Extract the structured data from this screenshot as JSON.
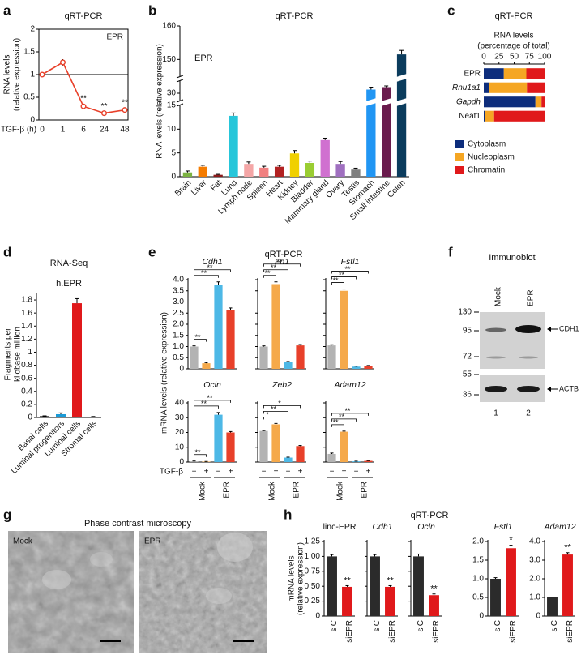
{
  "chart_data": [
    {
      "panel": "a",
      "type": "line",
      "title": "qRT-PCR",
      "annotation": "EPR",
      "ylabel": [
        "RNA levels",
        "(relative expression)"
      ],
      "xlabel": "TGF-β (h)",
      "categories": [
        "0",
        "1",
        "6",
        "24",
        "48"
      ],
      "values": [
        1,
        1.27,
        0.3,
        0.15,
        0.22
      ],
      "errors": [
        0.03,
        0.07,
        0.04,
        0.02,
        0.03
      ],
      "significance": [
        null,
        null,
        "**",
        "**",
        "**"
      ],
      "color": "#e8402a",
      "reference_line": {
        "value": 1,
        "color": "#4cc43a"
      },
      "ylim": [
        0,
        2
      ],
      "yticks": [
        0,
        0.5,
        1,
        1.5,
        2
      ]
    },
    {
      "panel": "b",
      "type": "bar",
      "title": "qRT-PCR",
      "annotation": "EPR",
      "ylabel": "RNA levels (relative expression)",
      "categories": [
        "Brain",
        "Liver",
        "Fat",
        "Lung",
        "Lymph node",
        "Spleen",
        "Heart",
        "Kidney",
        "Bladder",
        "Mammary gland",
        "Ovary",
        "Testis",
        "Stomach",
        "Small intestine",
        "Colon"
      ],
      "values": [
        0.9,
        2.1,
        0.4,
        12.8,
        2.7,
        1.9,
        2.1,
        4.9,
        2.9,
        7.7,
        2.7,
        1.5,
        31.5,
        32.5,
        151.5
      ],
      "errors": [
        0.3,
        0.3,
        0.1,
        0.6,
        0.4,
        0.3,
        0.3,
        0.6,
        0.4,
        0.4,
        0.5,
        0.3,
        1.0,
        0.5,
        1.2
      ],
      "colors": [
        "#7cb342",
        "#f57c00",
        "#8b1a1a",
        "#26c6da",
        "#f4a6a6",
        "#f08080",
        "#b22222",
        "#f0d000",
        "#9acd32",
        "#d070d0",
        "#a070c0",
        "#808080",
        "#2196f3",
        "#6a1b4d",
        "#0b3c5d"
      ],
      "ylim": [
        0,
        160
      ],
      "ybreaks": [
        [
          15,
          27
        ],
        [
          35,
          145
        ]
      ],
      "yticks": [
        0,
        5,
        10,
        15,
        30,
        150,
        160
      ]
    },
    {
      "panel": "c",
      "type": "stacked_barh",
      "title": "qRT-PCR",
      "xlabel": [
        "RNA levels",
        "(percentage of total)"
      ],
      "categories": [
        "EPR",
        "Rnu1a1",
        "Gapdh",
        "Neat1"
      ],
      "category_italic": [
        false,
        true,
        true,
        false
      ],
      "series": [
        {
          "name": "Cytoplasm",
          "color": "#0d2d7c",
          "values": [
            33,
            8,
            85,
            2
          ]
        },
        {
          "name": "Nucleoplasm",
          "color": "#f5a623",
          "values": [
            37,
            63,
            10,
            15
          ]
        },
        {
          "name": "Chromatin",
          "color": "#e0191b",
          "values": [
            30,
            29,
            5,
            83
          ]
        }
      ],
      "xlim": [
        0,
        100
      ],
      "xticks": [
        0,
        25,
        50,
        75,
        100
      ]
    },
    {
      "panel": "d",
      "type": "bar",
      "title": "RNA-Seq",
      "annotation": "h.EPR",
      "ylabel": [
        "Fragments per",
        "kilobase million"
      ],
      "categories": [
        "Basal cells",
        "Luminal progenitors",
        "Luminal cells",
        "Stromal cells"
      ],
      "values": [
        0.02,
        0.05,
        1.75,
        0.01
      ],
      "errors": [
        0.005,
        0.02,
        0.07,
        0.005
      ],
      "colors": [
        "#000000",
        "#1a9ad6",
        "#e0191b",
        "#2db34a"
      ],
      "colored_labels": true,
      "ylim": [
        0,
        1.9
      ],
      "yticks": [
        0,
        0.2,
        0.4,
        0.6,
        0.8,
        1,
        1.2,
        1.4,
        1.6,
        1.8
      ]
    },
    {
      "panel": "e",
      "type": "multibar",
      "title": "qRT-PCR",
      "ylabel": "mRNA levels (relative expression)",
      "x_signs": [
        "−",
        "+",
        "−",
        "+"
      ],
      "x_sign_label": "TGF-β",
      "groups": [
        "Mock",
        "EPR"
      ],
      "colors": [
        "#b3b3b3",
        "#f5a94a",
        "#4db8e6",
        "#e8402a"
      ],
      "axes": [
        {
          "ylim": [
            0,
            4
          ],
          "yticks": [
            0,
            0.5,
            {
              "value": 1,
              "label": "1.0"
            },
            1.5,
            {
              "value": 2,
              "label": "2.0"
            },
            2.5,
            {
              "value": 3,
              "label": "3.0"
            },
            3.5,
            {
              "value": 4,
              "label": "4.0"
            }
          ],
          "panels": [
            {
              "name": "Cdh1",
              "italic": true,
              "values": [
                1.0,
                0.25,
                3.75,
                2.65
              ],
              "errors": [
                0.03,
                0.03,
                0.15,
                0.08
              ],
              "significance": [
                "**",
                "**",
                "**"
              ]
            },
            {
              "name": "Fn1",
              "italic": true,
              "values": [
                1.0,
                3.8,
                0.3,
                1.05
              ],
              "errors": [
                0.03,
                0.1,
                0.03,
                0.04
              ],
              "significance": [
                "**",
                "**",
                "**"
              ]
            },
            {
              "name": "Fstl1",
              "italic": true,
              "values": [
                1.05,
                3.5,
                0.1,
                0.13
              ],
              "errors": [
                0.03,
                0.08,
                0.02,
                0.02
              ],
              "significance": [
                "**",
                "**",
                "**"
              ]
            }
          ]
        },
        {
          "ylim": [
            0,
            40
          ],
          "yticks": [
            0,
            10,
            20,
            30,
            40
          ],
          "panels": [
            {
              "name": "Ocln",
              "italic": true,
              "values": [
                0.5,
                0.3,
                32,
                20
              ],
              "errors": [
                0.2,
                0.1,
                1.5,
                0.6
              ],
              "significance": [
                "**",
                "**",
                "**"
              ]
            },
            {
              "name": "Zeb2",
              "italic": true,
              "values": [
                21,
                25.5,
                3,
                10.8
              ],
              "errors": [
                0.3,
                0.6,
                0.3,
                0.4
              ],
              "significance": [
                "*",
                "**",
                "*"
              ]
            },
            {
              "name": "Adam12",
              "italic": true,
              "values": [
                5.5,
                20.5,
                0.5,
                0.8
              ],
              "errors": [
                0.6,
                0.4,
                0.1,
                0.2
              ],
              "significance": [
                "**",
                "**",
                "**"
              ]
            }
          ]
        }
      ]
    },
    {
      "panel": "h",
      "type": "multibar",
      "title": "qRT-PCR",
      "ylabel": [
        "mRNA levels",
        "(relative expression)"
      ],
      "categories": [
        "siC",
        "siEPR"
      ],
      "colors": [
        "#2b2b2b",
        "#e0191b"
      ],
      "axes": [
        {
          "ylim": [
            0,
            1.25
          ],
          "yticks": [
            0,
            0.25,
            {
              "value": 0.5,
              "label": "0.50"
            },
            0.75,
            {
              "value": 1,
              "label": "1.00"
            },
            1.25
          ],
          "panels": [
            {
              "name": "linc-EPR",
              "italic": false,
              "values": [
                1.0,
                0.49
              ],
              "errors": [
                0.03,
                0.02
              ],
              "significance": [
                null,
                "**"
              ]
            },
            {
              "name": "Cdh1",
              "italic": true,
              "values": [
                1.0,
                0.49
              ],
              "errors": [
                0.03,
                0.02
              ],
              "significance": [
                null,
                "**"
              ]
            },
            {
              "name": "Ocln",
              "italic": true,
              "values": [
                1.0,
                0.35
              ],
              "errors": [
                0.04,
                0.02
              ],
              "significance": [
                null,
                "**"
              ]
            }
          ]
        },
        {
          "ylim": [
            0,
            2
          ],
          "yticks": [
            0,
            0.5,
            {
              "value": 1,
              "label": "1.0"
            },
            1.5,
            {
              "value": 2,
              "label": "2.0"
            }
          ],
          "panels": [
            {
              "name": "Fstl1",
              "italic": true,
              "values": [
                1.0,
                1.82
              ],
              "errors": [
                0.03,
                0.08
              ],
              "significance": [
                null,
                "*"
              ]
            }
          ]
        },
        {
          "ylim": [
            0,
            4
          ],
          "yticks": [
            0,
            {
              "value": 1,
              "label": "1.0"
            },
            {
              "value": 2,
              "label": "2.0"
            },
            {
              "value": 3,
              "label": "3.0"
            },
            {
              "value": 4,
              "label": "4.0"
            }
          ],
          "panels": [
            {
              "name": "Adam12",
              "italic": true,
              "values": [
                1.0,
                3.3
              ],
              "errors": [
                0.02,
                0.1
              ],
              "significance": [
                null,
                "**"
              ]
            }
          ]
        }
      ]
    }
  ],
  "blot": {
    "panel": "f",
    "title": "Immunoblot",
    "lanes": [
      "Mock",
      "EPR"
    ],
    "markers": [
      130,
      95,
      72,
      55,
      36
    ],
    "bands": [
      "CDH1",
      "ACTB"
    ],
    "lane_numbers": [
      "1",
      "2"
    ]
  },
  "microscopy": {
    "panel": "g",
    "title": "Phase contrast microscopy",
    "images": [
      "Mock",
      "EPR"
    ]
  }
}
